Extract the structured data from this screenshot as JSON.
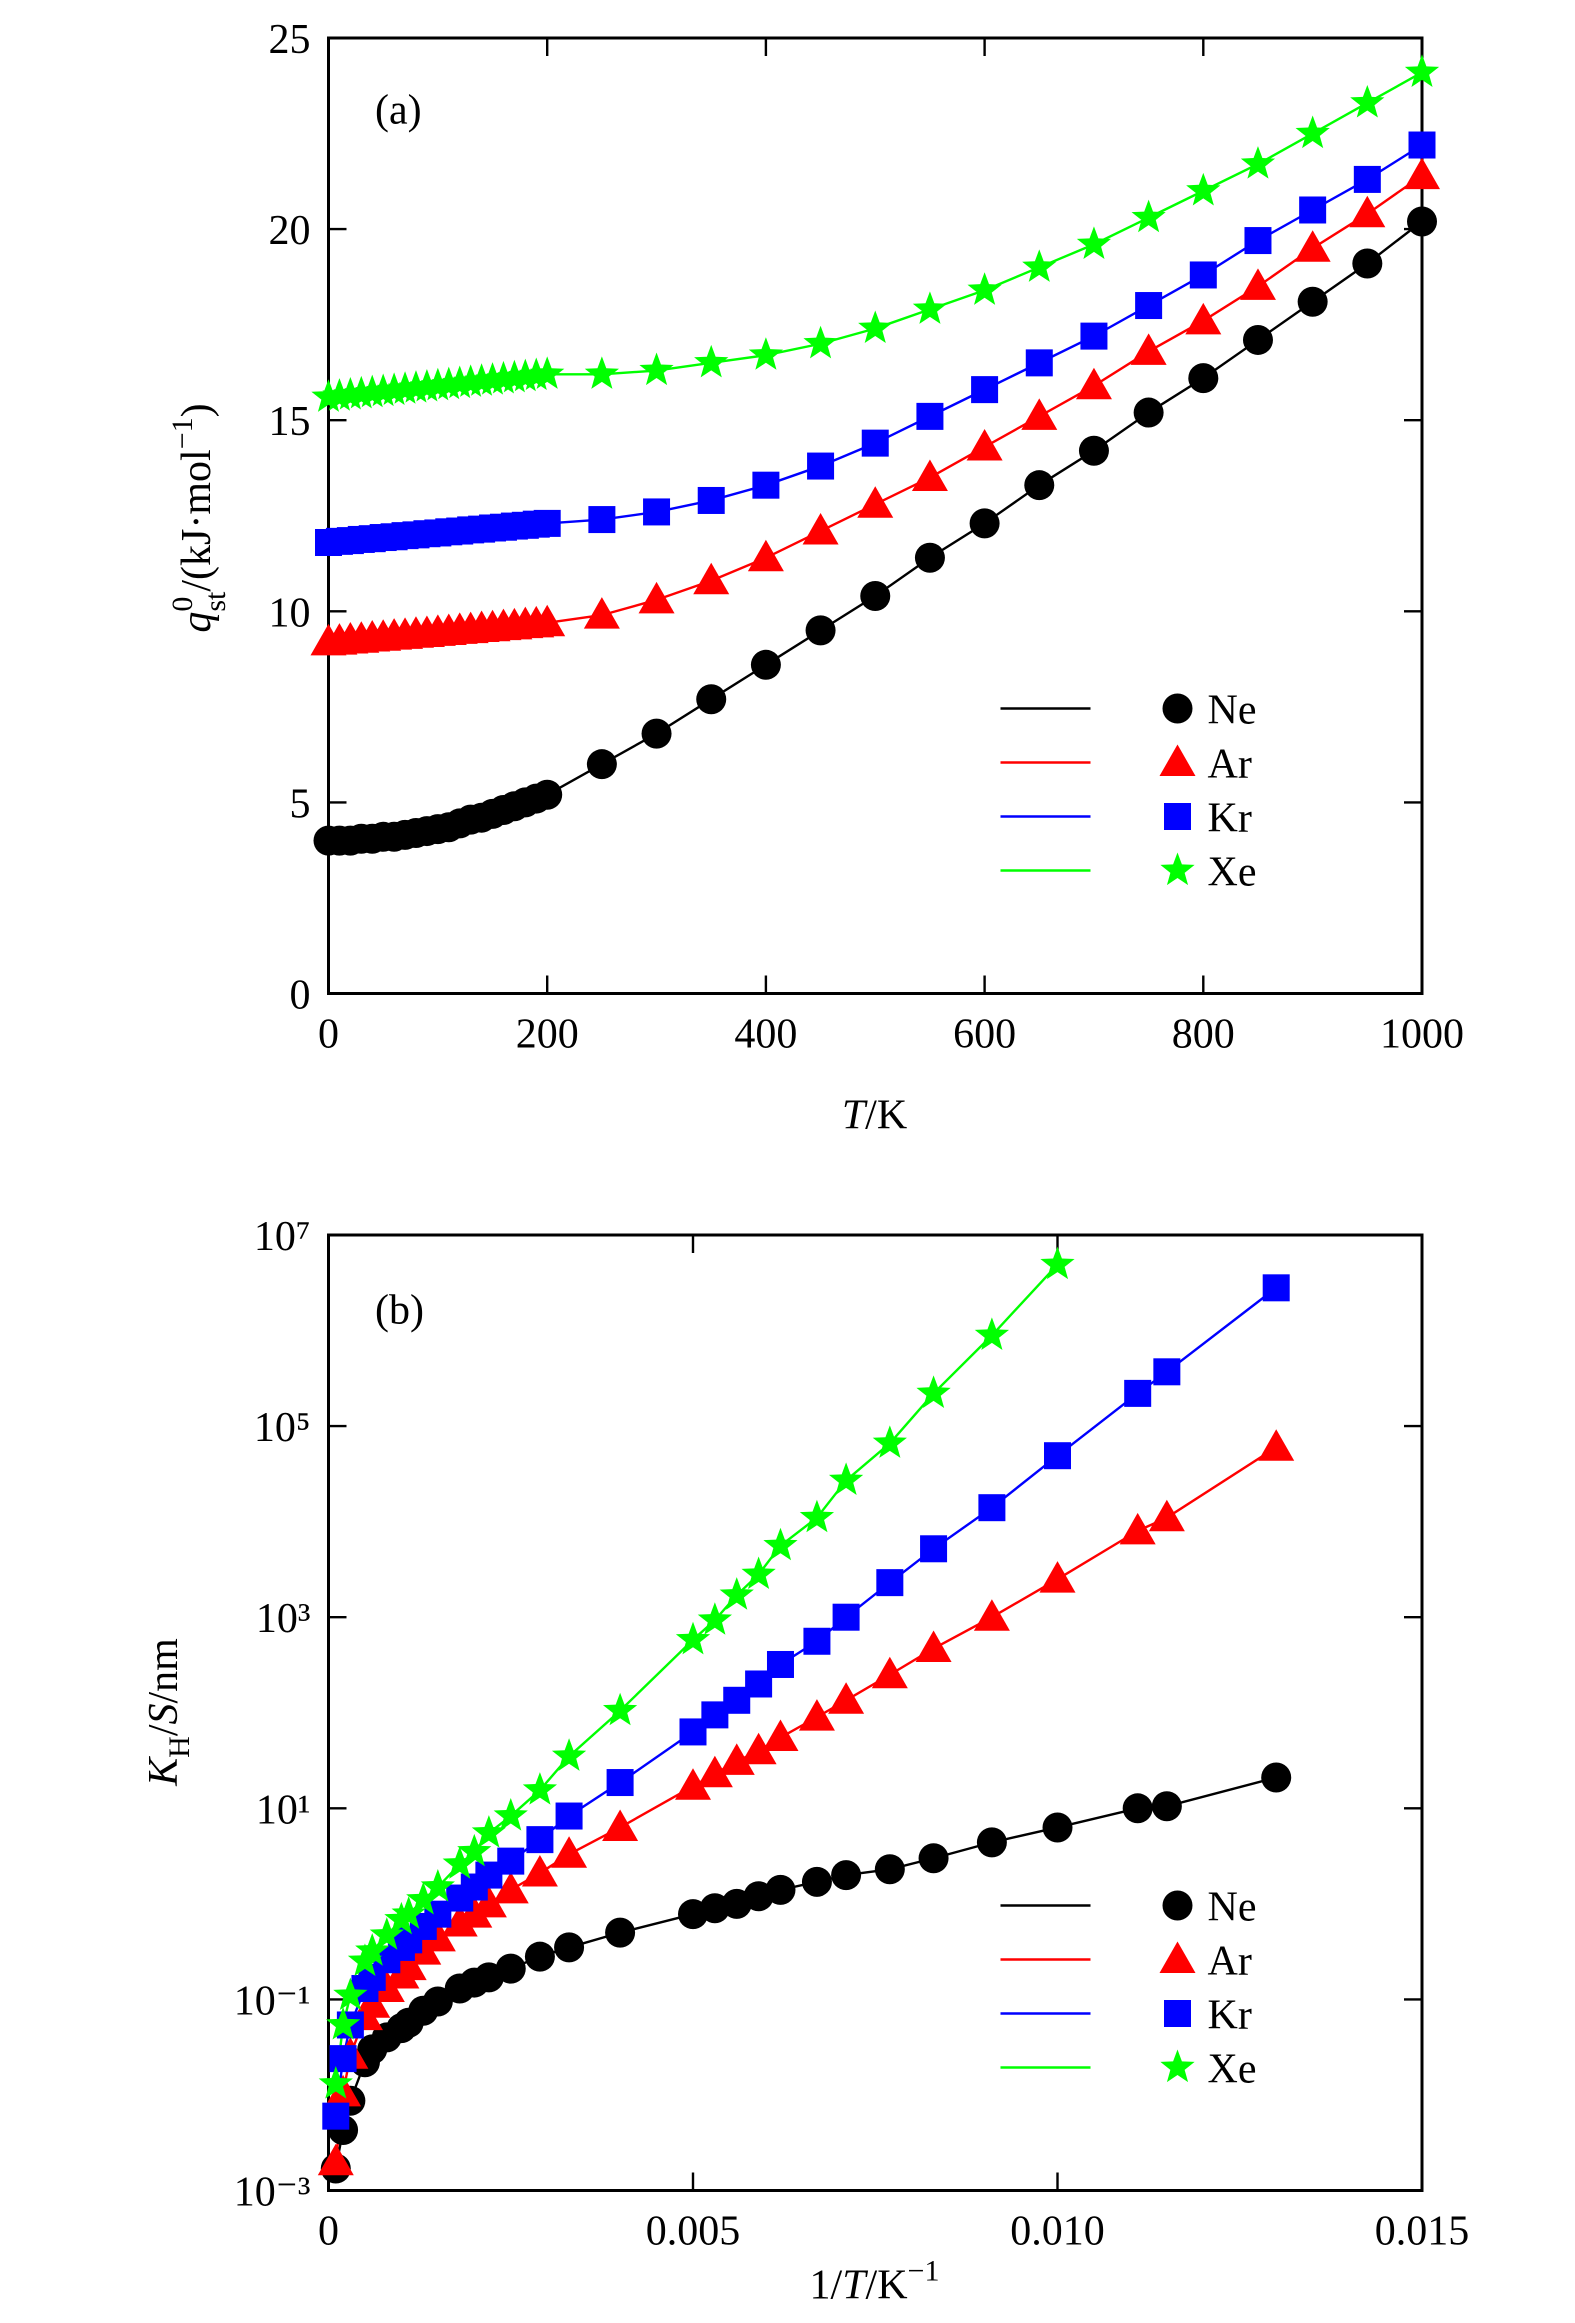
{
  "chart_data": [
    {
      "type": "line",
      "panel_label": "(a)",
      "xlabel": [
        "T",
        "/K"
      ],
      "ylabel": [
        "q",
        "0",
        "st",
        "/(kJ·mol",
        "−1",
        ")"
      ],
      "xlim": [
        0,
        1000
      ],
      "ylim": [
        0,
        25
      ],
      "xticks": [
        0,
        200,
        400,
        600,
        800,
        1000
      ],
      "yticks": [
        0,
        5,
        10,
        15,
        20,
        25
      ],
      "legend": "lower right",
      "x": [
        0,
        10,
        20,
        30,
        40,
        50,
        60,
        70,
        80,
        90,
        100,
        110,
        120,
        130,
        140,
        150,
        160,
        170,
        180,
        190,
        200,
        250,
        300,
        350,
        400,
        450,
        500,
        550,
        600,
        650,
        700,
        750,
        800,
        850,
        900,
        950,
        1000
      ],
      "series": [
        {
          "name": "Ne",
          "color": "#000000",
          "marker": "circle",
          "values": [
            4.0,
            4.0,
            4.0,
            4.05,
            4.05,
            4.1,
            4.1,
            4.15,
            4.2,
            4.25,
            4.3,
            4.35,
            4.45,
            4.55,
            4.6,
            4.7,
            4.8,
            4.9,
            5.0,
            5.1,
            5.2,
            6.0,
            6.8,
            7.7,
            8.6,
            9.5,
            10.4,
            11.4,
            12.3,
            13.3,
            14.2,
            15.2,
            16.1,
            17.1,
            18.1,
            19.1,
            20.2
          ]
        },
        {
          "name": "Ar",
          "color": "#ff0000",
          "marker": "triangle",
          "values": [
            9.2,
            9.22,
            9.25,
            9.27,
            9.3,
            9.32,
            9.35,
            9.37,
            9.4,
            9.42,
            9.45,
            9.47,
            9.5,
            9.52,
            9.55,
            9.57,
            9.6,
            9.62,
            9.65,
            9.67,
            9.7,
            9.9,
            10.3,
            10.8,
            11.4,
            12.1,
            12.8,
            13.5,
            14.3,
            15.1,
            15.9,
            16.8,
            17.6,
            18.5,
            19.5,
            20.4,
            21.4
          ]
        },
        {
          "name": "Kr",
          "color": "#0000ff",
          "marker": "square",
          "values": [
            11.8,
            11.83,
            11.85,
            11.88,
            11.9,
            11.93,
            11.95,
            11.98,
            12.0,
            12.03,
            12.05,
            12.08,
            12.1,
            12.13,
            12.15,
            12.18,
            12.2,
            12.23,
            12.25,
            12.28,
            12.3,
            12.4,
            12.6,
            12.9,
            13.3,
            13.8,
            14.4,
            15.1,
            15.8,
            16.5,
            17.2,
            18.0,
            18.8,
            19.7,
            20.5,
            21.3,
            22.2
          ]
        },
        {
          "name": "Xe",
          "color": "#00ff00",
          "marker": "star",
          "values": [
            15.6,
            15.63,
            15.66,
            15.69,
            15.72,
            15.75,
            15.78,
            15.81,
            15.84,
            15.87,
            15.9,
            15.93,
            15.96,
            15.99,
            16.02,
            16.05,
            16.08,
            16.11,
            16.14,
            16.17,
            16.2,
            16.2,
            16.3,
            16.5,
            16.7,
            17.0,
            17.4,
            17.9,
            18.4,
            19.0,
            19.6,
            20.3,
            21.0,
            21.7,
            22.5,
            23.3,
            24.1
          ]
        }
      ]
    },
    {
      "type": "line",
      "panel_label": "(b)",
      "xlabel": [
        "1/",
        "T",
        "/K",
        "−1"
      ],
      "ylabel": [
        "K",
        "H",
        "/",
        "S",
        "/nm"
      ],
      "xlim": [
        0,
        0.015
      ],
      "ylim": [
        0.001,
        10000000
      ],
      "log_y": true,
      "xticks": [
        0,
        0.005,
        {
          "value": 0.01,
          "label": "0.010"
        },
        0.015
      ],
      "yticks": [
        {
          "value": 0.001,
          "label": "10⁻³"
        },
        {
          "value": 0.1,
          "label": "10⁻¹"
        },
        {
          "value": 10,
          "label": "10¹"
        },
        {
          "value": 1000,
          "label": "10³"
        },
        {
          "value": 100000,
          "label": "10⁵"
        },
        {
          "value": 10000000,
          "label": "10⁷"
        }
      ],
      "legend": "lower right",
      "x": [
        0.013,
        0.0115,
        0.0111,
        0.01,
        0.0091,
        0.0083,
        0.0077,
        0.0071,
        0.0067,
        0.0062,
        0.0059,
        0.0056,
        0.0053,
        0.005,
        0.004,
        0.0033,
        0.0029,
        0.0025,
        0.0022,
        0.002,
        0.0018,
        0.0015,
        0.0013,
        0.0011,
        0.001,
        0.0008,
        0.0006,
        0.0005,
        0.0003,
        0.0002,
        0.0001
      ],
      "series": [
        {
          "name": "Ne",
          "color": "#000000",
          "marker": "circle",
          "values": [
            21,
            10.5,
            10,
            6.3,
            4.4,
            3.0,
            2.3,
            2.0,
            1.7,
            1.4,
            1.2,
            1.0,
            0.9,
            0.78,
            0.5,
            0.35,
            0.28,
            0.21,
            0.17,
            0.15,
            0.13,
            0.095,
            0.076,
            0.057,
            0.05,
            0.04,
            0.03,
            0.022,
            0.0087,
            0.0043,
            0.0017
          ]
        },
        {
          "name": "Ar",
          "color": "#ff0000",
          "marker": "triangle",
          "values": [
            60000,
            11000,
            8000,
            2500,
            1000,
            470,
            250,
            135,
            90,
            55,
            40,
            31,
            23,
            17,
            6.3,
            3.3,
            2.1,
            1.4,
            1.0,
            0.78,
            0.63,
            0.44,
            0.32,
            0.22,
            0.18,
            0.13,
            0.089,
            0.066,
            0.026,
            0.0105,
            0.002
          ]
        },
        {
          "name": "Kr",
          "color": "#0000ff",
          "marker": "square",
          "values": [
            2800000,
            370000,
            220000,
            49000,
            14000,
            5200,
            2300,
            1000,
            560,
            320,
            200,
            135,
            95,
            63,
            18.6,
            8.3,
            4.7,
            2.8,
            2.0,
            1.5,
            1.15,
            0.78,
            0.58,
            0.42,
            0.35,
            0.26,
            0.17,
            0.13,
            0.054,
            0.024,
            0.006
          ]
        },
        {
          "name": "Xe",
          "color": "#00ff00",
          "marker": "star",
          "values": [
            null,
            null,
            null,
            4900000,
            890000,
            220000,
            66000,
            27000,
            11000,
            5600,
            2800,
            1700,
            930,
            580,
            105,
            35,
            15.5,
            8.3,
            5.5,
            3.5,
            2.6,
            1.5,
            1.1,
            0.78,
            0.68,
            0.47,
            0.32,
            0.25,
            0.11,
            0.054,
            0.013
          ]
        }
      ]
    }
  ]
}
